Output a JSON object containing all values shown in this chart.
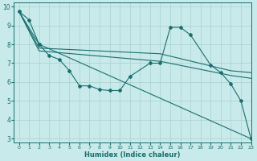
{
  "xlabel": "Humidex (Indice chaleur)",
  "bg_color": "#c8eaea",
  "grid_color": "#aacfcf",
  "line_color": "#1a6e6e",
  "xlim": [
    -0.5,
    23
  ],
  "ylim": [
    2.8,
    10.2
  ],
  "yticks": [
    3,
    4,
    5,
    6,
    7,
    8,
    9,
    10
  ],
  "xticks": [
    0,
    1,
    2,
    3,
    4,
    5,
    6,
    7,
    8,
    9,
    10,
    11,
    12,
    13,
    14,
    15,
    16,
    17,
    18,
    19,
    20,
    21,
    22,
    23
  ],
  "line1_x": [
    0,
    1,
    2,
    23
  ],
  "line1_y": [
    9.75,
    9.3,
    8.0,
    3.0
  ],
  "line2_x": [
    0,
    2,
    3,
    4,
    5,
    6,
    7,
    8,
    9,
    10,
    11,
    13,
    14,
    15,
    16,
    17,
    19,
    20,
    21,
    22,
    23
  ],
  "line2_y": [
    9.75,
    8.0,
    7.4,
    7.2,
    6.6,
    5.8,
    5.8,
    5.6,
    5.55,
    5.55,
    6.3,
    7.0,
    7.0,
    8.9,
    8.9,
    8.5,
    6.9,
    6.5,
    5.9,
    5.0,
    3.0
  ],
  "line3_x": [
    0,
    2,
    14,
    21,
    23
  ],
  "line3_y": [
    9.75,
    7.8,
    7.5,
    6.6,
    6.5
  ],
  "line4_x": [
    0,
    2,
    14,
    21,
    23
  ],
  "line4_y": [
    9.75,
    7.65,
    7.1,
    6.35,
    6.2
  ]
}
